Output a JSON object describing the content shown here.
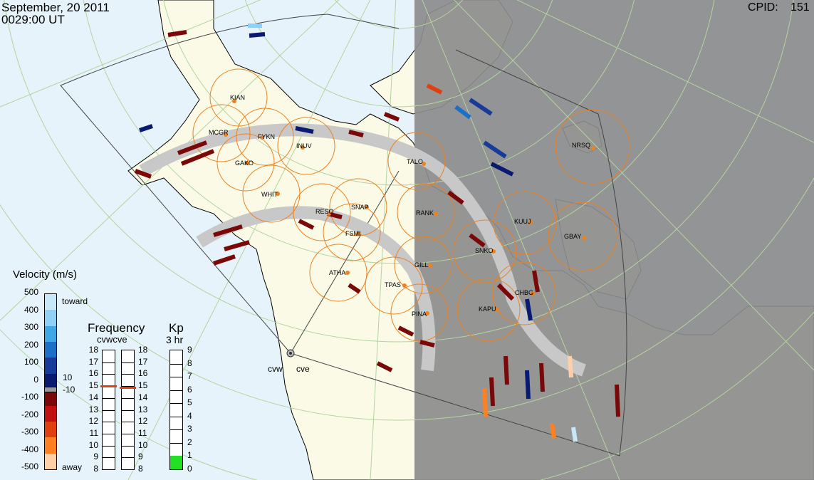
{
  "header": {
    "date": "September, 20 2011",
    "time": "0029:00 UT",
    "cpid_label": "CPID:",
    "cpid_value": "151"
  },
  "stations": [
    "KIAN",
    "MCGR",
    "FYKN",
    "INUV",
    "GAKO",
    "WHIT",
    "RANK",
    "SNAP",
    "FSMI",
    "NRSQ",
    "KUUJ",
    "GBAY",
    "SNKO",
    "GILL",
    "ATHA",
    "TPAS",
    "PINA",
    "CHBG",
    "KAPU",
    "TALO",
    "RESO"
  ],
  "radars": [
    "cvw",
    "cve"
  ],
  "velocity_scale": {
    "title": "Velocity (m/s)",
    "ticks": [
      "500",
      "400",
      "300",
      "200",
      "100",
      "0",
      "-100",
      "-200",
      "-300",
      "-400",
      "-500"
    ],
    "toward_label": "toward",
    "away_label": "away",
    "threshold_pos": "10",
    "threshold_neg": "-10",
    "colors": [
      "#c8e8fa",
      "#8fd0f5",
      "#3ea8e6",
      "#1c70c8",
      "#183a98",
      "#0a1a70",
      "#7a0808",
      "#c01010",
      "#e04010",
      "#ff8020",
      "#ffd0a8"
    ]
  },
  "frequency": {
    "title": "Frequency",
    "subtitle": "cvwcve",
    "left_ticks": [
      "18",
      "17",
      "16",
      "15",
      "14",
      "13",
      "12",
      "11",
      "10",
      "9",
      "8"
    ],
    "right_ticks": [
      "18",
      "17",
      "16",
      "15",
      "14",
      "13",
      "12",
      "11",
      "10",
      "9",
      "8"
    ],
    "cvw_mhz": 15.0,
    "cve_mhz": 14.9
  },
  "kp": {
    "title": "Kp",
    "subtitle": "3 hr",
    "ticks": [
      "9",
      "8",
      "7",
      "6",
      "5",
      "4",
      "3",
      "2",
      "1",
      "0"
    ],
    "value": 1
  },
  "colors": {
    "ocean": "#e6f3fa",
    "land": "#fafae6",
    "night": "#8c8c8c",
    "grid": "#b4d3a0",
    "station_circle": "#ec8220",
    "ground_scatter": "#c8c8c8",
    "freq_marker": "#e04010",
    "kp_fill": "#22e022"
  }
}
